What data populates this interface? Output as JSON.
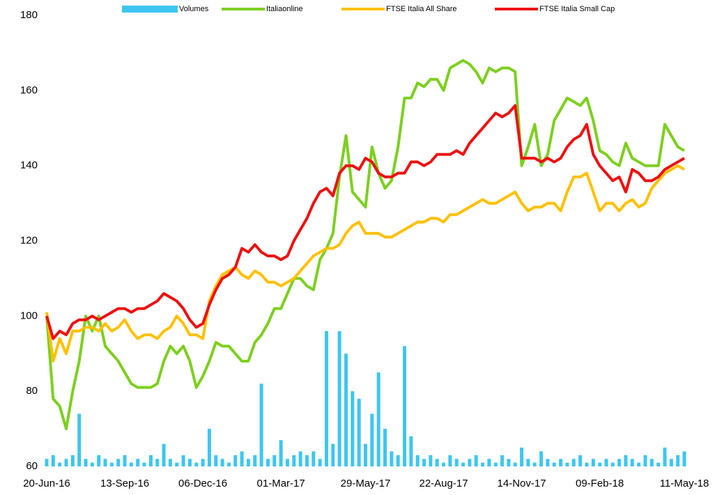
{
  "chart_data": {
    "type": "line",
    "categories": [
      "20-Jun-16",
      null,
      null,
      null,
      null,
      null,
      null,
      null,
      null,
      null,
      null,
      null,
      "13-Sep-16",
      null,
      null,
      null,
      null,
      null,
      null,
      null,
      null,
      null,
      null,
      null,
      "06-Dec-16",
      null,
      null,
      null,
      null,
      null,
      null,
      null,
      null,
      null,
      null,
      null,
      "01-Mar-17",
      null,
      null,
      null,
      null,
      null,
      null,
      null,
      null,
      null,
      null,
      null,
      null,
      "29-May-17",
      null,
      null,
      null,
      null,
      null,
      null,
      null,
      null,
      null,
      null,
      null,
      "22-Aug-17",
      null,
      null,
      null,
      null,
      null,
      null,
      null,
      null,
      null,
      null,
      null,
      "14-Nov-17",
      null,
      null,
      null,
      null,
      null,
      null,
      null,
      null,
      null,
      null,
      null,
      "09-Feb-18",
      null,
      null,
      null,
      null,
      null,
      null,
      null,
      null,
      null,
      null,
      null,
      null,
      "11-May-18"
    ],
    "series": [
      {
        "name": "Volumes",
        "type": "bar",
        "color": "#3ec6f0",
        "values": [
          62,
          63,
          61,
          62,
          63,
          74,
          62,
          61,
          63,
          62,
          61,
          62,
          63,
          61,
          62,
          61,
          63,
          62,
          66,
          62,
          61,
          63,
          62,
          61,
          62,
          70,
          63,
          62,
          61,
          63,
          64,
          62,
          63,
          82,
          62,
          63,
          67,
          62,
          63,
          64,
          63,
          64,
          62,
          96,
          66,
          96,
          90,
          80,
          78,
          66,
          74,
          85,
          70,
          64,
          63,
          92,
          68,
          63,
          62,
          63,
          62,
          61,
          63,
          62,
          61,
          62,
          63,
          61,
          62,
          61,
          63,
          62,
          61,
          65,
          62,
          61,
          64,
          62,
          61,
          62,
          61,
          62,
          63,
          61,
          62,
          61,
          62,
          61,
          62,
          63,
          62,
          61,
          63,
          62,
          61,
          65,
          62,
          63,
          64
        ]
      },
      {
        "name": "Italiaonline",
        "type": "line",
        "color": "#7dcf1f",
        "values": [
          100,
          78,
          76,
          70,
          80,
          88,
          100,
          96,
          100,
          92,
          90,
          88,
          85,
          82,
          81,
          81,
          81,
          82,
          88,
          92,
          90,
          92,
          88,
          81,
          84,
          88,
          93,
          92,
          92,
          90,
          88,
          88,
          93,
          95,
          98,
          102,
          102,
          106,
          110,
          110,
          108,
          107,
          115,
          118,
          122,
          137,
          148,
          133,
          131,
          129,
          145,
          138,
          134,
          136,
          145,
          158,
          158,
          162,
          161,
          163,
          163,
          160,
          166,
          167,
          168,
          167,
          165,
          162,
          166,
          165,
          166,
          166,
          165,
          140,
          145,
          151,
          140,
          143,
          152,
          155,
          158,
          157,
          156,
          158,
          152,
          144,
          143,
          141,
          140,
          146,
          142,
          141,
          140,
          140,
          140,
          151,
          148,
          145,
          144
        ]
      },
      {
        "name": "FTSE Italia All Share",
        "type": "line",
        "color": "#ffc000",
        "values": [
          101,
          88,
          94,
          90,
          96,
          96,
          97,
          97,
          96,
          98,
          96,
          97,
          99,
          96,
          94,
          95,
          95,
          94,
          96,
          97,
          100,
          98,
          95,
          95,
          94,
          104,
          108,
          111,
          112,
          113,
          111,
          110,
          112,
          111,
          109,
          109,
          108,
          109,
          110,
          112,
          114,
          116,
          117,
          118,
          118,
          119,
          122,
          124,
          125,
          122,
          122,
          122,
          121,
          121,
          122,
          123,
          124,
          125,
          125,
          126,
          126,
          125,
          127,
          127,
          128,
          129,
          130,
          131,
          130,
          130,
          131,
          132,
          133,
          130,
          128,
          129,
          129,
          130,
          130,
          128,
          133,
          137,
          137,
          138,
          133,
          128,
          130,
          130,
          128,
          130,
          131,
          129,
          130,
          134,
          136,
          138,
          139,
          140,
          139
        ]
      },
      {
        "name": "FTSE Italia Small Cap",
        "type": "line",
        "color": "#ee1010",
        "values": [
          100,
          94,
          96,
          95,
          98,
          99,
          99,
          100,
          99,
          100,
          101,
          102,
          102,
          101,
          102,
          102,
          103,
          104,
          106,
          105,
          104,
          102,
          99,
          97,
          98,
          103,
          107,
          110,
          111,
          113,
          118,
          117,
          119,
          117,
          116,
          116,
          115,
          116,
          120,
          123,
          126,
          130,
          133,
          134,
          132,
          138,
          140,
          140,
          139,
          142,
          141,
          138,
          137,
          137,
          138,
          138,
          141,
          141,
          140,
          141,
          143,
          143,
          143,
          144,
          143,
          146,
          148,
          150,
          152,
          154,
          153,
          154,
          156,
          142,
          142,
          142,
          141,
          142,
          141,
          142,
          145,
          147,
          148,
          151,
          143,
          140,
          138,
          136,
          137,
          133,
          139,
          138,
          136,
          136,
          137,
          139,
          140,
          141,
          142
        ]
      }
    ],
    "ylim": [
      60,
      180
    ],
    "yticks": [
      60,
      80,
      100,
      120,
      140,
      160,
      180
    ],
    "grid": false,
    "legend": "top"
  }
}
